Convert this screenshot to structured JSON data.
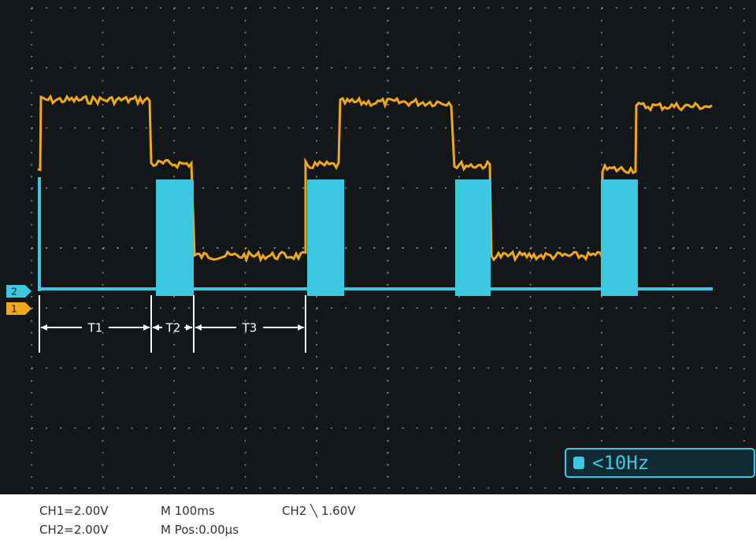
{
  "channel_markers": [
    "2",
    "1"
  ],
  "intervals": [
    "T1",
    "T2",
    "T3"
  ],
  "trigger_readout": "<10Hz",
  "status": {
    "ch1_scale": "CH1=2.00V",
    "ch2_scale": "CH2=2.00V",
    "time_base": "M 100ms",
    "position": "M Pos:0.00µs",
    "trigger": "CH2 ╲ 1.60V"
  }
}
